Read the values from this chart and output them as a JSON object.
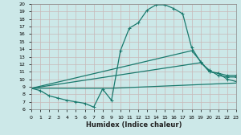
{
  "xlabel": "Humidex (Indice chaleur)",
  "bg_color": "#cce8e8",
  "grid_color": "#b0d0d0",
  "line_color": "#1a7a6e",
  "xlim": [
    0,
    23
  ],
  "ylim": [
    6,
    20
  ],
  "xticks": [
    0,
    1,
    2,
    3,
    4,
    5,
    6,
    7,
    8,
    9,
    10,
    11,
    12,
    13,
    14,
    15,
    16,
    17,
    18,
    19,
    20,
    21,
    22,
    23
  ],
  "yticks": [
    6,
    7,
    8,
    9,
    10,
    11,
    12,
    13,
    14,
    15,
    16,
    17,
    18,
    19,
    20
  ],
  "series0_x": [
    0,
    1,
    2,
    3,
    4,
    5,
    6,
    7,
    8,
    9,
    10,
    11,
    12,
    13,
    14,
    15,
    16,
    17,
    18,
    19,
    20,
    21,
    22,
    23
  ],
  "series0_y": [
    8.8,
    8.5,
    7.8,
    7.5,
    7.2,
    7.0,
    6.8,
    6.3,
    8.7,
    7.2,
    13.8,
    16.8,
    17.5,
    19.2,
    19.9,
    19.9,
    19.4,
    18.7,
    14.2,
    12.3,
    11.0,
    10.8,
    10.0,
    9.7
  ],
  "series1_x": [
    0,
    18,
    20,
    21,
    22,
    23
  ],
  "series1_y": [
    8.8,
    13.8,
    11.0,
    10.8,
    10.5,
    10.5
  ],
  "series2_x": [
    0,
    19,
    20,
    21,
    22,
    23
  ],
  "series2_y": [
    8.8,
    12.2,
    11.2,
    10.5,
    10.3,
    10.3
  ],
  "series3_x": [
    0,
    9,
    23
  ],
  "series3_y": [
    8.8,
    8.8,
    9.5
  ]
}
